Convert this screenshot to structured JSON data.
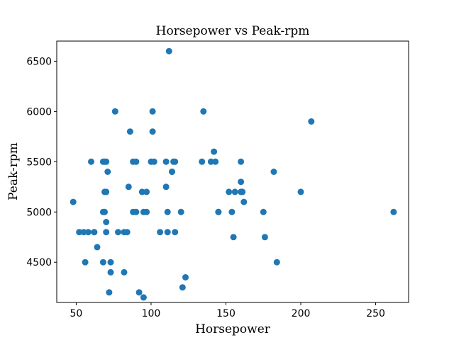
{
  "chart_data": {
    "type": "scatter",
    "title": "Horsepower vs Peak-rpm",
    "xlabel": "Horsepower",
    "ylabel": "Peak-rpm",
    "xlim": [
      37,
      272
    ],
    "ylim": [
      4100,
      6700
    ],
    "xticks": [
      50,
      100,
      150,
      200,
      250
    ],
    "yticks": [
      4500,
      5000,
      5500,
      6000,
      6500
    ],
    "grid": false,
    "color": "#1f77b4",
    "points": [
      [
        48,
        5100
      ],
      [
        52,
        4800
      ],
      [
        55,
        4800
      ],
      [
        56,
        4500
      ],
      [
        58,
        4800
      ],
      [
        60,
        5500
      ],
      [
        62,
        4800
      ],
      [
        62,
        4800
      ],
      [
        64,
        4650
      ],
      [
        68,
        5500
      ],
      [
        69,
        5500
      ],
      [
        69,
        5200
      ],
      [
        70,
        5500
      ],
      [
        70,
        5200
      ],
      [
        69,
        5000
      ],
      [
        68,
        5000
      ],
      [
        68,
        4500
      ],
      [
        70,
        4900
      ],
      [
        70,
        4800
      ],
      [
        71,
        5400
      ],
      [
        72,
        4200
      ],
      [
        73,
        4500
      ],
      [
        73,
        4400
      ],
      [
        76,
        6000
      ],
      [
        78,
        4800
      ],
      [
        82,
        4400
      ],
      [
        82,
        4800
      ],
      [
        84,
        4800
      ],
      [
        85,
        5250
      ],
      [
        86,
        5800
      ],
      [
        88,
        5000
      ],
      [
        88,
        5500
      ],
      [
        90,
        5500
      ],
      [
        90,
        5000
      ],
      [
        92,
        4200
      ],
      [
        94,
        5200
      ],
      [
        95,
        5000
      ],
      [
        95,
        4150
      ],
      [
        97,
        5200
      ],
      [
        97,
        5000
      ],
      [
        100,
        5500
      ],
      [
        101,
        6000
      ],
      [
        101,
        5800
      ],
      [
        102,
        5500
      ],
      [
        106,
        4800
      ],
      [
        110,
        5500
      ],
      [
        110,
        5250
      ],
      [
        111,
        5000
      ],
      [
        111,
        4800
      ],
      [
        112,
        6600
      ],
      [
        114,
        5400
      ],
      [
        114,
        5400
      ],
      [
        115,
        5500
      ],
      [
        116,
        4800
      ],
      [
        116,
        5500
      ],
      [
        120,
        5000
      ],
      [
        121,
        4250
      ],
      [
        123,
        4350
      ],
      [
        134,
        5500
      ],
      [
        135,
        6000
      ],
      [
        140,
        5500
      ],
      [
        142,
        5600
      ],
      [
        143,
        5500
      ],
      [
        145,
        5000
      ],
      [
        145,
        5000
      ],
      [
        152,
        5200
      ],
      [
        154,
        5000
      ],
      [
        155,
        4750
      ],
      [
        156,
        5200
      ],
      [
        160,
        5300
      ],
      [
        160,
        5500
      ],
      [
        160,
        5200
      ],
      [
        161,
        5200
      ],
      [
        162,
        5100
      ],
      [
        175,
        5000
      ],
      [
        176,
        4750
      ],
      [
        182,
        5400
      ],
      [
        184,
        4500
      ],
      [
        200,
        5200
      ],
      [
        207,
        5900
      ],
      [
        262,
        5000
      ]
    ]
  }
}
